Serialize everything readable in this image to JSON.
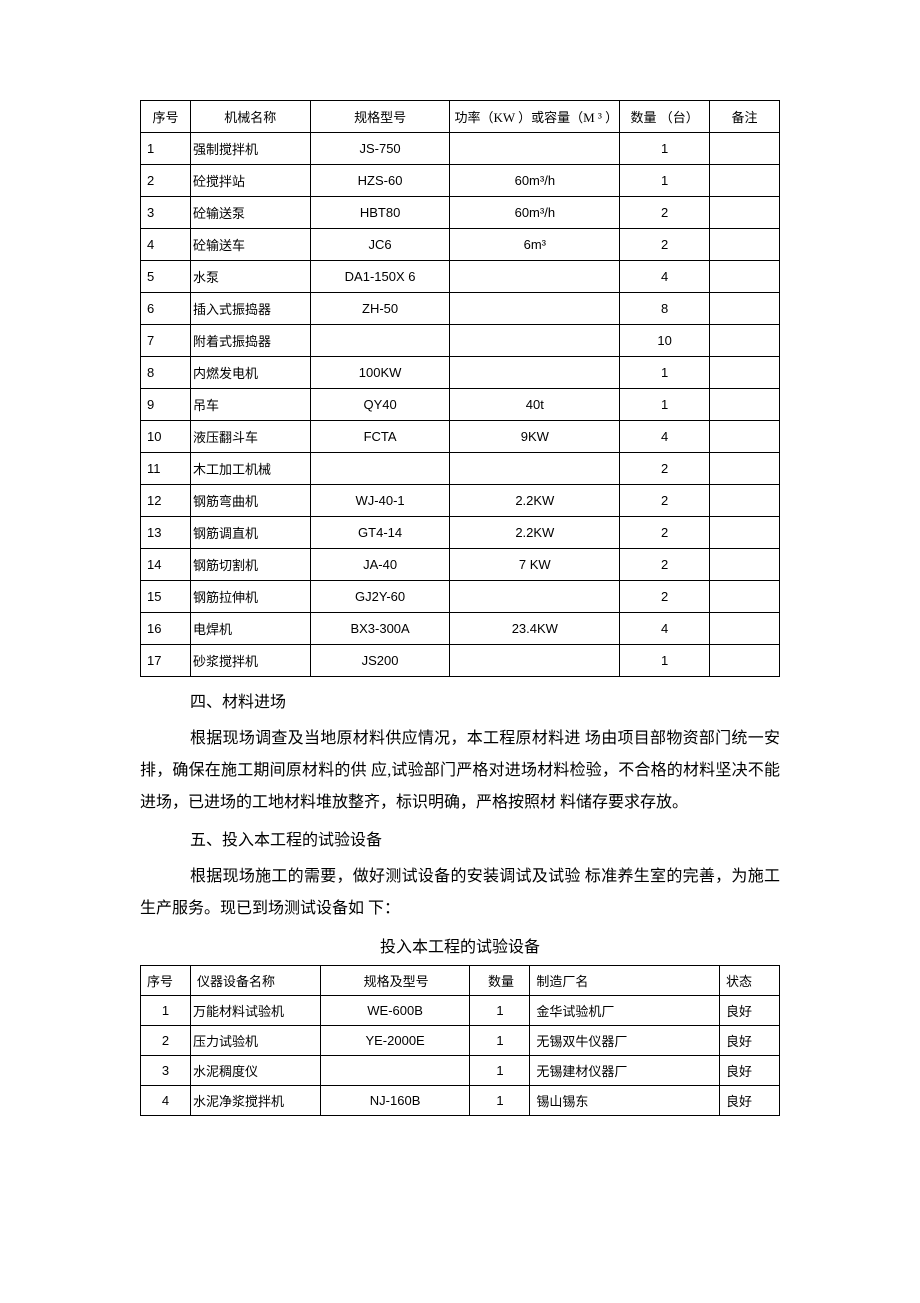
{
  "table1": {
    "headers": [
      "序号",
      "机械名称",
      "规格型号",
      "功率（KW ）或容量（M ³ ）",
      "数量 （台）",
      "备注"
    ],
    "rows": [
      [
        "1",
        "强制搅拌机",
        "JS-750",
        "",
        "1",
        ""
      ],
      [
        "2",
        "砼搅拌站",
        "HZS-60",
        "60m³/h",
        "1",
        ""
      ],
      [
        "3",
        "砼输送泵",
        "HBT80",
        "60m³/h",
        "2",
        ""
      ],
      [
        "4",
        "砼输送车",
        "JC6",
        "6m³",
        "2",
        ""
      ],
      [
        "5",
        "水泵",
        "DA1-150X 6",
        "",
        "4",
        ""
      ],
      [
        "6",
        "插入式振捣器",
        "ZH-50",
        "",
        "8",
        ""
      ],
      [
        "7",
        "附着式振捣器",
        "",
        "",
        "10",
        ""
      ],
      [
        "8",
        "内燃发电机",
        "100KW",
        "",
        "1",
        ""
      ],
      [
        "9",
        "吊车",
        "QY40",
        "40t",
        "1",
        ""
      ],
      [
        "10",
        "液压翻斗车",
        "FCTA",
        "9KW",
        "4",
        ""
      ],
      [
        "11",
        "木工加工机械",
        "",
        "",
        "2",
        ""
      ],
      [
        "12",
        "钢筋弯曲机",
        "WJ-40-1",
        "2.2KW",
        "2",
        ""
      ],
      [
        "13",
        "钢筋调直机",
        "GT4-14",
        "2.2KW",
        "2",
        ""
      ],
      [
        "14",
        "钢筋切割机",
        "JA-40",
        "7 KW",
        "2",
        ""
      ],
      [
        "15",
        "钢筋拉伸机",
        "GJ2Y-60",
        "",
        "2",
        ""
      ],
      [
        "16",
        "电焊机",
        "BX3-300A",
        "23.4KW",
        "4",
        ""
      ],
      [
        "17",
        "砂浆搅拌机",
        "JS200",
        "",
        "1",
        ""
      ]
    ]
  },
  "section4": {
    "heading": "四、材料进场",
    "paragraph": "根据现场调查及当地原材料供应情况，本工程原材料进 场由项目部物资部门统一安排，确保在施工期间原材料的供 应,试验部门严格对进场材料检验，不合格的材料坚决不能 进场，已进场的工地材料堆放整齐，标识明确，严格按照材 料储存要求存放。"
  },
  "section5": {
    "heading": "五、投入本工程的试验设备",
    "paragraph": "根据现场施工的需要，做好测试设备的安装调试及试验 标准养生室的完善，为施工生产服务。现已到场测试设备如 下："
  },
  "table2": {
    "title": "投入本工程的试验设备",
    "headers": [
      "序号",
      "仪器设备名称",
      "规格及型号",
      "数量",
      "制造厂名",
      "状态"
    ],
    "rows": [
      [
        "1",
        "万能材料试验机",
        "WE-600B",
        "1",
        "金华试验机厂",
        "良好"
      ],
      [
        "2",
        "压力试验机",
        "YE-2000E",
        "1",
        "无锡双牛仪器厂",
        "良好"
      ],
      [
        "3",
        "水泥稠度仪",
        "",
        "1",
        "无锡建材仪器厂",
        "良好"
      ],
      [
        "4",
        "水泥净浆搅拌机",
        "NJ-160B",
        "1",
        "锡山锡东",
        "良好"
      ]
    ]
  }
}
